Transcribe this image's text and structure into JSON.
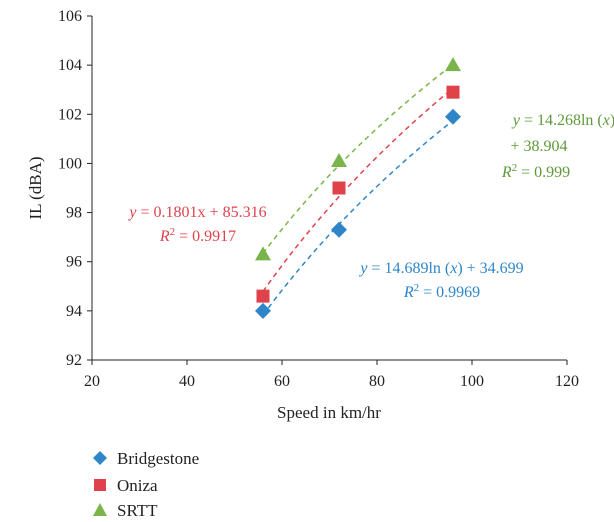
{
  "chart_data": {
    "type": "scatter",
    "title": "",
    "xlabel": "Speed in km/hr",
    "ylabel": "IL (dBA)",
    "xlim": [
      20,
      120
    ],
    "ylim": [
      92,
      106
    ],
    "xticks": [
      20,
      40,
      60,
      80,
      100,
      120
    ],
    "yticks": [
      92,
      94,
      96,
      98,
      100,
      102,
      104,
      106
    ],
    "grid": false,
    "legend_position": "bottom-left",
    "series": [
      {
        "name": "Bridgestone",
        "marker": "diamond",
        "color": "#2e86c9",
        "x": [
          56,
          72,
          96
        ],
        "y": [
          94.0,
          97.3,
          101.9
        ],
        "trendline": {
          "type": "log",
          "a": 14.689,
          "b": 34.699
        },
        "equation": {
          "line1": "y = 14.689ln (x) + 34.699",
          "r2_prefix": "R",
          "r2_sup": "2",
          "r2_value": " = 0.9969"
        }
      },
      {
        "name": "Oniza",
        "marker": "square",
        "color": "#e0424b",
        "x": [
          56,
          72,
          96
        ],
        "y": [
          94.6,
          99.0,
          102.9
        ],
        "trendline": {
          "type": "log_fit"
        },
        "equation": {
          "line1": "y = 0.1801x + 85.316",
          "r2_prefix": "R",
          "r2_sup": "2",
          "r2_value": " = 0.9917"
        }
      },
      {
        "name": "SRTT",
        "marker": "triangle",
        "color": "#79b54a",
        "x": [
          56,
          72,
          96
        ],
        "y": [
          96.3,
          100.1,
          104.0
        ],
        "trendline": {
          "type": "log",
          "a": 14.268,
          "b": 38.904
        },
        "equation": {
          "line1": "y = 14.268ln (x)",
          "line2": "+ 38.904",
          "r2_prefix": "R",
          "r2_sup": "2",
          "r2_value": " = 0.999"
        }
      }
    ],
    "text_colors": {
      "Bridgestone": "#2e86c9",
      "Oniza": "#e0424b",
      "SRTT": "#5e9a3a"
    }
  }
}
